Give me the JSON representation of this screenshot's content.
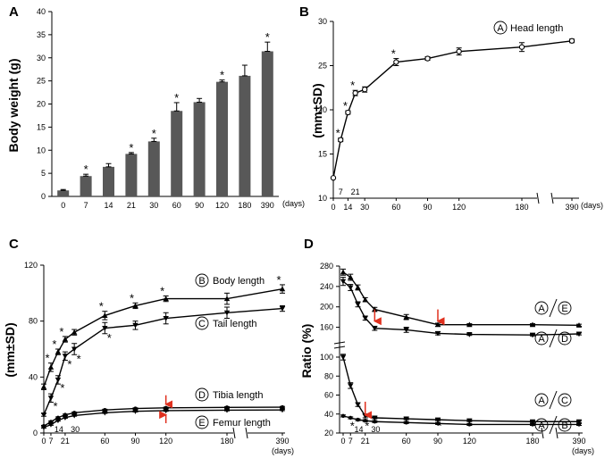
{
  "chart_data": [
    {
      "id": "A",
      "type": "bar",
      "panel_label": "A",
      "ylabel": "Body weight (g)",
      "xunit": "(days)",
      "ylim": [
        0,
        40
      ],
      "yticks": [
        0,
        5,
        10,
        15,
        20,
        25,
        30,
        35,
        40
      ],
      "categories": [
        "0",
        "7",
        "14",
        "21",
        "30",
        "60",
        "90",
        "120",
        "180",
        "390"
      ],
      "values": [
        1.3,
        4.4,
        6.4,
        9.2,
        11.9,
        18.5,
        20.4,
        24.8,
        26.1,
        31.4
      ],
      "errors": [
        0.2,
        0.4,
        0.7,
        0.3,
        0.7,
        1.8,
        0.8,
        0.4,
        2.3,
        2.0
      ],
      "significant": [
        false,
        true,
        false,
        true,
        true,
        true,
        false,
        true,
        false,
        true
      ],
      "star": "*"
    },
    {
      "id": "B",
      "type": "line",
      "panel_label": "B",
      "ylabel": "(mm±SD)",
      "xunit": "(days)",
      "ylim": [
        10,
        30
      ],
      "yticks": [
        10,
        15,
        20,
        25,
        30
      ],
      "xticks": [
        "0",
        "14",
        "30",
        "60",
        "90",
        "120",
        "180",
        "390"
      ],
      "xticks_upper": [
        "7",
        "21"
      ],
      "series": [
        {
          "name": "Head length",
          "circle": "A",
          "x": [
            0,
            7,
            14,
            21,
            30,
            60,
            90,
            120,
            180,
            390
          ],
          "y": [
            12.3,
            16.6,
            19.7,
            21.9,
            22.3,
            25.4,
            25.8,
            26.6,
            27.1,
            27.8
          ],
          "err": [
            0,
            0.2,
            0.2,
            0.3,
            0.3,
            0.4,
            0.2,
            0.4,
            0.5,
            0.2
          ],
          "significant": [
            false,
            true,
            true,
            true,
            false,
            true,
            false,
            false,
            false,
            false
          ]
        }
      ],
      "star": "*"
    },
    {
      "id": "C",
      "type": "line",
      "panel_label": "C",
      "ylabel": "(mm±SD)",
      "xunit": "(days)",
      "ylim": [
        0,
        120
      ],
      "yticks": [
        0,
        40,
        80,
        120
      ],
      "xticks": [
        "0",
        "7",
        "21",
        "60",
        "90",
        "120",
        "180",
        "390"
      ],
      "xticks_lower": [
        "14",
        "30"
      ],
      "series": [
        {
          "name": "Body length",
          "circle": "B",
          "x": [
            0,
            7,
            14,
            21,
            30,
            60,
            90,
            120,
            180,
            390
          ],
          "y": [
            33,
            47,
            58,
            67,
            72,
            84,
            91,
            96,
            96,
            103
          ],
          "err": [
            2,
            3,
            2,
            2,
            2,
            3,
            2,
            2,
            4,
            3
          ]
        },
        {
          "name": "Tail length",
          "circle": "C",
          "x": [
            0,
            7,
            14,
            21,
            30,
            60,
            90,
            120,
            180,
            390
          ],
          "y": [
            13,
            25,
            38,
            55,
            60,
            75,
            77,
            82,
            86,
            89
          ],
          "err": [
            1,
            3,
            3,
            3,
            4,
            4,
            3,
            4,
            4,
            2
          ]
        },
        {
          "name": "Tibia length",
          "circle": "D",
          "x": [
            0,
            7,
            14,
            21,
            30,
            60,
            90,
            120,
            180,
            390
          ],
          "y": [
            5,
            8,
            11,
            13,
            14.5,
            16.5,
            17.5,
            18,
            18.3,
            18.5
          ],
          "err": [
            0.5,
            0.5,
            0.5,
            0.5,
            0.5,
            0.5,
            0.5,
            0.5,
            0.5,
            0.5
          ]
        },
        {
          "name": "Femur length",
          "circle": "E",
          "x": [
            0,
            7,
            14,
            21,
            30,
            60,
            90,
            120,
            180,
            390
          ],
          "y": [
            4,
            6,
            9,
            11,
            12.5,
            14.5,
            15.5,
            16,
            16.3,
            16.5
          ],
          "err": [
            0.5,
            0.5,
            0.5,
            0.5,
            0.5,
            0.5,
            0.5,
            0.5,
            0.5,
            0.5
          ]
        }
      ],
      "arrow_day": 120,
      "star": "*"
    },
    {
      "id": "D",
      "type": "line",
      "panel_label": "D",
      "ylabel": "Ratio (%)",
      "xunit": "(days)",
      "upper": {
        "ylim": [
          140,
          280
        ],
        "yticks": [
          160,
          200,
          240,
          280
        ]
      },
      "lower": {
        "ylim": [
          20,
          100
        ],
        "yticks": [
          20,
          40,
          60,
          80,
          100
        ]
      },
      "xticks": [
        "0",
        "7",
        "21",
        "60",
        "90",
        "120",
        "180",
        "390"
      ],
      "xticks_lower": [
        "14",
        "30"
      ],
      "series": [
        {
          "name": "A/E",
          "num": "A",
          "den": "E",
          "axis": "upper",
          "x": [
            0,
            7,
            14,
            21,
            30,
            60,
            90,
            120,
            180,
            390
          ],
          "y": [
            268,
            258,
            238,
            214,
            195,
            180,
            165,
            165,
            165,
            164
          ],
          "err": [
            6,
            6,
            5,
            4,
            4,
            5,
            3,
            2,
            2,
            2
          ]
        },
        {
          "name": "A/D",
          "num": "A",
          "den": "D",
          "axis": "upper",
          "x": [
            0,
            7,
            14,
            21,
            30,
            60,
            90,
            120,
            180,
            390
          ],
          "y": [
            250,
            238,
            205,
            178,
            158,
            155,
            148,
            146,
            145,
            147
          ],
          "err": [
            8,
            6,
            5,
            4,
            4,
            5,
            3,
            2,
            2,
            2
          ]
        },
        {
          "name": "A/C",
          "num": "A",
          "den": "C",
          "axis": "lower",
          "x": [
            0,
            7,
            14,
            21,
            30,
            60,
            90,
            120,
            180,
            390
          ],
          "y": [
            100,
            70,
            50,
            38,
            36,
            35,
            34,
            33,
            32,
            32
          ],
          "err": [
            3,
            3,
            2,
            2,
            1,
            1,
            1,
            1,
            1,
            1
          ]
        },
        {
          "name": "A/B",
          "num": "A",
          "den": "B",
          "axis": "lower",
          "x": [
            0,
            7,
            14,
            21,
            30,
            60,
            90,
            120,
            180,
            390
          ],
          "y": [
            38,
            36,
            34,
            33,
            32,
            31,
            30,
            29,
            29,
            29
          ],
          "err": [
            1,
            1,
            1,
            1,
            1,
            1,
            1,
            1,
            1,
            1
          ]
        }
      ],
      "arrow_days_upper": [
        30,
        90
      ],
      "arrow_day_lower": 21,
      "star": "*"
    }
  ]
}
